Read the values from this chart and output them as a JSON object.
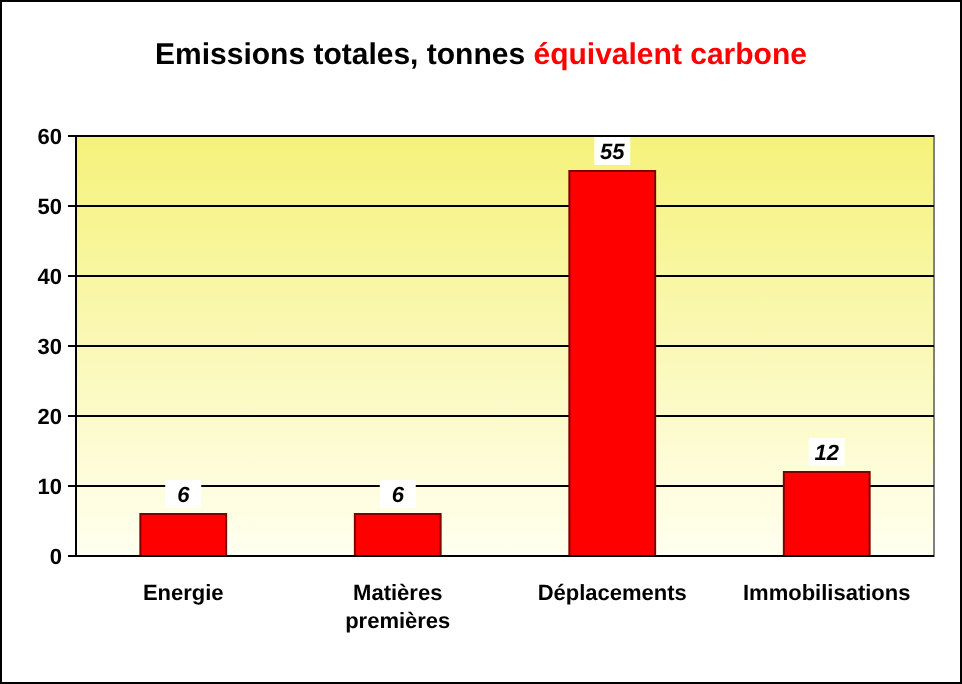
{
  "chart_data": {
    "type": "bar",
    "title": "Emissions totales, tonnes équivalent carbone",
    "categories": [
      "Energie",
      "Matières premières",
      "Déplacements",
      "Immobilisations"
    ],
    "values": [
      6,
      6,
      55,
      12
    ],
    "color": "#ff0000",
    "ylim": [
      0,
      60
    ],
    "yticks": [
      0,
      10,
      20,
      30,
      40,
      50,
      60
    ],
    "grid": "y",
    "data_labels": true
  }
}
